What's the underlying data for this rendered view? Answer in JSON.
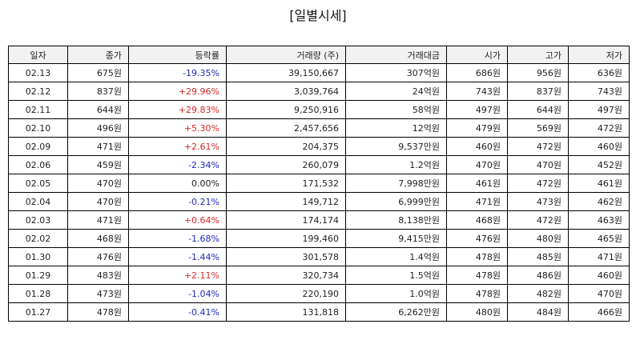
{
  "title": "[일별시세]",
  "columns": [
    "일자",
    "종가",
    "등락률",
    "거래량 (주)",
    "거래대금",
    "시가",
    "고가",
    "저가"
  ],
  "colors": {
    "up": "#d62828",
    "down": "#1f2ab8",
    "flat": "#222222"
  },
  "rows": [
    {
      "date": "02.13",
      "close": "675원",
      "change": "-19.35%",
      "dir": "down",
      "volume": "39,150,667",
      "amount": "307억원",
      "open": "686원",
      "high": "956원",
      "low": "636원"
    },
    {
      "date": "02.12",
      "close": "837원",
      "change": "+29.96%",
      "dir": "up",
      "volume": "3,039,764",
      "amount": "24억원",
      "open": "743원",
      "high": "837원",
      "low": "743원"
    },
    {
      "date": "02.11",
      "close": "644원",
      "change": "+29.83%",
      "dir": "up",
      "volume": "9,250,916",
      "amount": "58억원",
      "open": "497원",
      "high": "644원",
      "low": "497원"
    },
    {
      "date": "02.10",
      "close": "496원",
      "change": "+5.30%",
      "dir": "up",
      "volume": "2,457,656",
      "amount": "12억원",
      "open": "479원",
      "high": "569원",
      "low": "472원"
    },
    {
      "date": "02.09",
      "close": "471원",
      "change": "+2.61%",
      "dir": "up",
      "volume": "204,375",
      "amount": "9,537만원",
      "open": "460원",
      "high": "472원",
      "low": "460원"
    },
    {
      "date": "02.06",
      "close": "459원",
      "change": "-2.34%",
      "dir": "down",
      "volume": "260,079",
      "amount": "1.2억원",
      "open": "470원",
      "high": "470원",
      "low": "452원"
    },
    {
      "date": "02.05",
      "close": "470원",
      "change": "0.00%",
      "dir": "flat",
      "volume": "171,532",
      "amount": "7,998만원",
      "open": "461원",
      "high": "472원",
      "low": "461원"
    },
    {
      "date": "02.04",
      "close": "470원",
      "change": "-0.21%",
      "dir": "down",
      "volume": "149,712",
      "amount": "6,999만원",
      "open": "471원",
      "high": "473원",
      "low": "462원"
    },
    {
      "date": "02.03",
      "close": "471원",
      "change": "+0.64%",
      "dir": "up",
      "volume": "174,174",
      "amount": "8,138만원",
      "open": "468원",
      "high": "472원",
      "low": "463원"
    },
    {
      "date": "02.02",
      "close": "468원",
      "change": "-1.68%",
      "dir": "down",
      "volume": "199,460",
      "amount": "9,415만원",
      "open": "476원",
      "high": "480원",
      "low": "465원"
    },
    {
      "date": "01.30",
      "close": "476원",
      "change": "-1.44%",
      "dir": "down",
      "volume": "301,578",
      "amount": "1.4억원",
      "open": "478원",
      "high": "485원",
      "low": "471원"
    },
    {
      "date": "01.29",
      "close": "483원",
      "change": "+2.11%",
      "dir": "up",
      "volume": "320,734",
      "amount": "1.5억원",
      "open": "478원",
      "high": "486원",
      "low": "460원"
    },
    {
      "date": "01.28",
      "close": "473원",
      "change": "-1.04%",
      "dir": "down",
      "volume": "220,190",
      "amount": "1.0억원",
      "open": "478원",
      "high": "482원",
      "low": "470원"
    },
    {
      "date": "01.27",
      "close": "478원",
      "change": "-0.41%",
      "dir": "down",
      "volume": "131,818",
      "amount": "6,262만원",
      "open": "480원",
      "high": "484원",
      "low": "466원"
    }
  ]
}
